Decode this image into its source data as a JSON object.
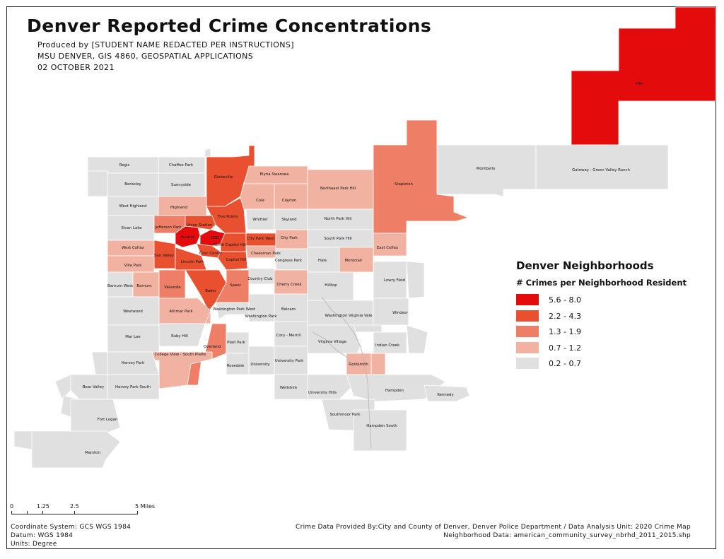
{
  "title": "Denver Reported Crime Concentrations",
  "subtitle_lines": [
    "Produced by [STUDENT NAME REDACTED PER INSTRUCTIONS]",
    "MSU DENVER, GIS 4860, GEOSPATIAL APPLICATIONS",
    "02 OCTOBER 2021"
  ],
  "legend": {
    "title": "Denver Neighborhoods",
    "subtitle": "# Crimes per Neighborhood Resident",
    "classes": [
      {
        "label": "5.6 - 8.0",
        "color": "#e30b0b"
      },
      {
        "label": "2.2 - 4.3",
        "color": "#e8502f"
      },
      {
        "label": "1.3 - 1.9",
        "color": "#ee7f66"
      },
      {
        "label": "0.7 - 1.2",
        "color": "#f2b2a1"
      },
      {
        "label": "0.2 - 0.7",
        "color": "#e0e0e0"
      }
    ]
  },
  "scale_bar": {
    "labels": [
      "0",
      "1.25",
      "2.5",
      "5 Miles"
    ]
  },
  "footer_left": [
    "Coordinate System: GCS WGS 1984",
    "Datum: WGS 1984",
    "Units: Degree"
  ],
  "footer_right": [
    "Crime Data Provided By:City and County of Denver, Denver Police Department / Data Analysis Unit: 2020 Crime Map",
    "Neighborhood Data:  american_community_survey_nbrhd_2011_2015.shp"
  ],
  "neighborhoods": [
    {
      "name": "DIA",
      "class": 0
    },
    {
      "name": "Regis",
      "class": 4
    },
    {
      "name": "Chaffee Park",
      "class": 4
    },
    {
      "name": "Globeville",
      "class": 1
    },
    {
      "name": "Elyria Swansea",
      "class": 3
    },
    {
      "name": "Montbello",
      "class": 4
    },
    {
      "name": "Gateway - Green Valley Ranch",
      "class": 4
    },
    {
      "name": "Berkeley",
      "class": 4
    },
    {
      "name": "Sunnyside",
      "class": 4
    },
    {
      "name": "Northeast Park Hill",
      "class": 3
    },
    {
      "name": "Stapleton",
      "class": 2
    },
    {
      "name": "Cole",
      "class": 3
    },
    {
      "name": "Clayton",
      "class": 3
    },
    {
      "name": "West Highland",
      "class": 4
    },
    {
      "name": "Highland",
      "class": 3
    },
    {
      "name": "Five Points",
      "class": 1
    },
    {
      "name": "Whittier",
      "class": 4
    },
    {
      "name": "Skyland",
      "class": 4
    },
    {
      "name": "North Park Hill",
      "class": 4
    },
    {
      "name": "Sloan Lake",
      "class": 4
    },
    {
      "name": "Jefferson Park",
      "class": 2
    },
    {
      "name": "Union Station",
      "class": 1
    },
    {
      "name": "Auraria",
      "class": 0
    },
    {
      "name": "CBD",
      "class": 0
    },
    {
      "name": "North Capitol Hill",
      "class": 1
    },
    {
      "name": "City Park West",
      "class": 1
    },
    {
      "name": "City Park",
      "class": 3
    },
    {
      "name": "South Park Hill",
      "class": 4
    },
    {
      "name": "East Colfax",
      "class": 3
    },
    {
      "name": "West Colfax",
      "class": 3
    },
    {
      "name": "Sun Valley",
      "class": 1
    },
    {
      "name": "Civic Center",
      "class": 1
    },
    {
      "name": "Lincoln Park",
      "class": 1
    },
    {
      "name": "Capitol Hill",
      "class": 1
    },
    {
      "name": "Cheesman Park",
      "class": 3
    },
    {
      "name": "Congress Park",
      "class": 4
    },
    {
      "name": "Hale",
      "class": 4
    },
    {
      "name": "Montclair",
      "class": 3
    },
    {
      "name": "Villa Park",
      "class": 3
    },
    {
      "name": "Country Club",
      "class": 4
    },
    {
      "name": "Barnum West",
      "class": 4
    },
    {
      "name": "Barnum",
      "class": 3
    },
    {
      "name": "Valverde",
      "class": 2
    },
    {
      "name": "Baker",
      "class": 1
    },
    {
      "name": "Speer",
      "class": 2
    },
    {
      "name": "Cherry Creek",
      "class": 3
    },
    {
      "name": "Hilltop",
      "class": 4
    },
    {
      "name": "Lowry Field",
      "class": 4
    },
    {
      "name": "Westwood",
      "class": 4
    },
    {
      "name": "Athmar Park",
      "class": 3
    },
    {
      "name": "Washington Park West",
      "class": 4
    },
    {
      "name": "Washington Park",
      "class": 4
    },
    {
      "name": "Belcaro",
      "class": 4
    },
    {
      "name": "Washington Virginia Vale",
      "class": 4
    },
    {
      "name": "Windsor",
      "class": 4
    },
    {
      "name": "Mar Lee",
      "class": 4
    },
    {
      "name": "Ruby Hill",
      "class": 4
    },
    {
      "name": "Overland",
      "class": 2
    },
    {
      "name": "Platt Park",
      "class": 4
    },
    {
      "name": "Cory - Merrill",
      "class": 4
    },
    {
      "name": "Virginia Village",
      "class": 4
    },
    {
      "name": "Indian Creek",
      "class": 4
    },
    {
      "name": "College View - South Platte",
      "class": 3
    },
    {
      "name": "Harvey Park",
      "class": 4
    },
    {
      "name": "Rosedale",
      "class": 4
    },
    {
      "name": "University",
      "class": 4
    },
    {
      "name": "University Park",
      "class": 4
    },
    {
      "name": "Goldsmith",
      "class": 3
    },
    {
      "name": "Bear Valley",
      "class": 4
    },
    {
      "name": "Harvey Park South",
      "class": 4
    },
    {
      "name": "Wellshire",
      "class": 4
    },
    {
      "name": "University Hills",
      "class": 4
    },
    {
      "name": "Hampden",
      "class": 4
    },
    {
      "name": "Kennedy",
      "class": 4
    },
    {
      "name": "Fort Logan",
      "class": 4
    },
    {
      "name": "Southmoor Park",
      "class": 4
    },
    {
      "name": "Hampden South",
      "class": 4
    },
    {
      "name": "Marston",
      "class": 4
    }
  ]
}
